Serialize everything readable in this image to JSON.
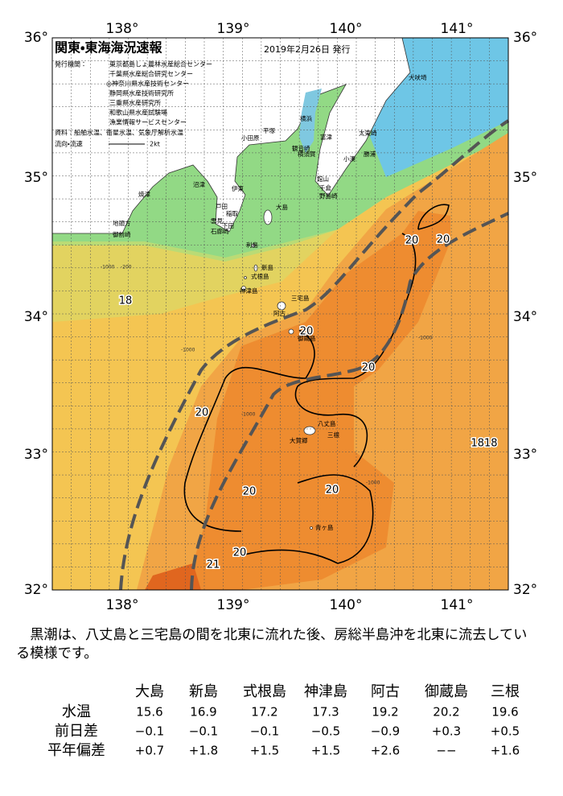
{
  "header": {
    "title": "関東・東海海況速報",
    "date": "2019年2月26日 発行",
    "publisher_label": "発行機関：",
    "publishers": [
      "東京都島しょ農林水産総合センター",
      "千葉県水産総合研究センター",
      "◎神奈川県水産技術センター",
      "静岡県水産技術研究所",
      "三重県水産研究所",
      "和歌山県水産試験場",
      "漁業情報サービスセンター"
    ],
    "sources": "資料：船舶水温、衛星水温、気象庁解析水温",
    "flow_label": "流向・流速",
    "flow_scale": "2kt"
  },
  "map": {
    "lon_labels": [
      "138°",
      "139°",
      "140°",
      "141°"
    ],
    "lat_labels": [
      "36°",
      "35°",
      "34°",
      "33°",
      "32°"
    ],
    "places": [
      "犬吠埼",
      "太東崎",
      "勝浦",
      "小湊",
      "館山",
      "千倉",
      "野島崎",
      "富津",
      "横須賀",
      "観音崎",
      "横浜",
      "平塚",
      "小田原",
      "伊東",
      "稲取",
      "下田",
      "石廊崎",
      "雲見",
      "戸田",
      "沼津",
      "焼津",
      "御前崎",
      "地頭方",
      "大島",
      "利島",
      "新島",
      "式根島",
      "神津島",
      "三宅島",
      "阿古",
      "御蔵島",
      "八丈島",
      "三根",
      "大賀郷",
      "青ヶ島"
    ],
    "isotherm_labels": [
      20,
      20,
      20,
      20,
      20,
      20,
      20,
      20,
      18,
      21,
      1818
    ],
    "depth_labels": [
      -1000,
      -200,
      -1000,
      -1000,
      -1000,
      -1000
    ]
  },
  "summary": "黒潮は、八丈島と三宅島の間を北東に流れた後、房総半島沖を北東に流去している模様です。",
  "table": {
    "columns": [
      "大島",
      "新島",
      "式根島",
      "神津島",
      "阿古",
      "御蔵島",
      "三根"
    ],
    "rows": [
      {
        "label": "水温",
        "values": [
          15.6,
          16.9,
          17.2,
          17.3,
          19.2,
          20.2,
          19.6
        ]
      },
      {
        "label": "前日差",
        "values": [
          "−0.1",
          "−0.1",
          "−0.1",
          "−0.5",
          "−0.9",
          "+0.3",
          "+0.5"
        ]
      },
      {
        "label": "平年偏差",
        "values": [
          "+0.7",
          "+1.8",
          "+1.5",
          "+1.5",
          "+2.6",
          "−−",
          "+1.6"
        ]
      }
    ]
  }
}
